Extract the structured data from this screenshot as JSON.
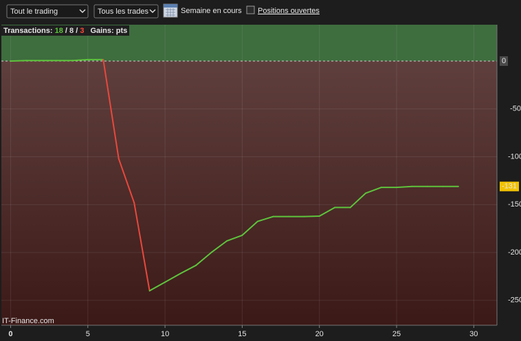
{
  "toolbar": {
    "filter": "Tout le trading",
    "trades": "Tous les trades",
    "period": "Semaine en cours",
    "open_positions": "Positions ouvertes"
  },
  "chart_data": {
    "type": "line",
    "header": {
      "label": "Transactions:",
      "winners": 18,
      "neutral": 8,
      "losers": 3,
      "gains": "Gains: pts"
    },
    "x": [
      0,
      1,
      2,
      3,
      4,
      5,
      6,
      7,
      8,
      9,
      10,
      11,
      12,
      13,
      14,
      15,
      16,
      17,
      18,
      19,
      20,
      21,
      22,
      23,
      24,
      25,
      26,
      27,
      28,
      29
    ],
    "series": [
      {
        "values": [
          0,
          0.5,
          0.5,
          0.5,
          0.5,
          1.5,
          1.5,
          -102,
          -148,
          -240,
          -231,
          -222,
          -213.5,
          -200,
          -188,
          -182,
          -167.5,
          -162.5,
          -162.5,
          -162.5,
          -162,
          -153,
          -153,
          -138,
          -132,
          -132,
          -131,
          -131,
          -131,
          -131
        ],
        "color": "#5ec43c",
        "down_color": "#e8483c"
      }
    ],
    "xlim": [
      -0.6,
      31.5
    ],
    "ylim": [
      -276,
      38
    ],
    "xticks": [
      0,
      5,
      10,
      15,
      20,
      25,
      30
    ],
    "yticks": [
      -250,
      -200,
      -150,
      -100,
      -50,
      0
    ],
    "grid": true,
    "watermark": "IT-Finance.com"
  }
}
